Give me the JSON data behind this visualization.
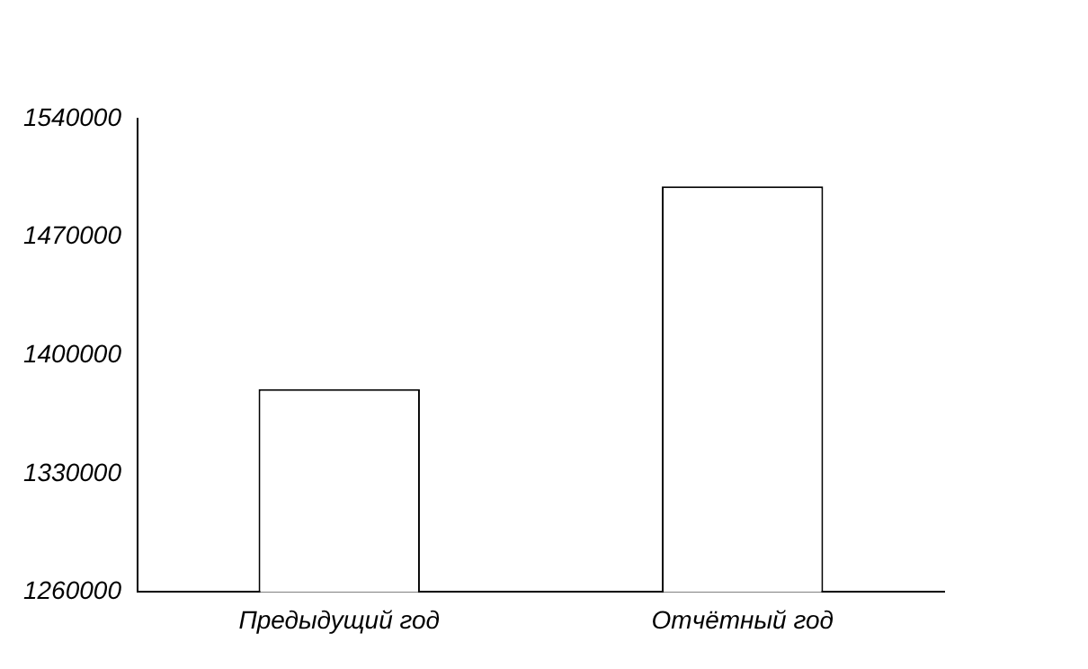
{
  "chart_data": {
    "type": "bar",
    "categories": [
      "Предыдущий год",
      "Отчётный год"
    ],
    "values": [
      1380000,
      1500000
    ],
    "color": "#ffffff",
    "ylim": [
      1260000,
      1540000
    ],
    "yticks": [
      1260000,
      1330000,
      1400000,
      1470000,
      1540000
    ],
    "grid": false,
    "legend": false
  }
}
